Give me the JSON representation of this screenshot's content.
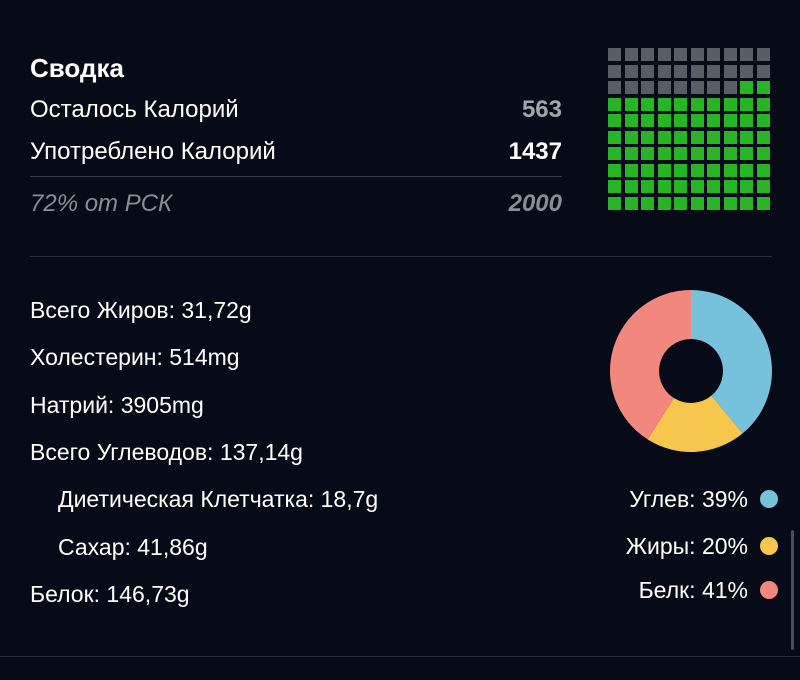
{
  "summary": {
    "title": "Сводка",
    "remaining_label": "Осталось Калорий",
    "remaining_value": "563",
    "consumed_label": "Употреблено Калорий",
    "consumed_value": "1437",
    "percent_of_target": "72% от РСК",
    "target_value": "2000",
    "waffle_fraction_consumed": 0.72
  },
  "nutrients": [
    {
      "label": "Всего Жиров: 31,72g",
      "indent": false
    },
    {
      "label": "Холестерин: 514mg",
      "indent": false
    },
    {
      "label": "Натрий: 3905mg",
      "indent": false
    },
    {
      "label": "Всего Углеводов: 137,14g",
      "indent": false
    },
    {
      "label": "Диетическая Клетчатка: 18,7g",
      "indent": true
    },
    {
      "label": "Сахар: 41,86g",
      "indent": true
    },
    {
      "label": "Белок: 146,73g",
      "indent": false
    }
  ],
  "macros_chart": {
    "type": "pie",
    "slices": [
      {
        "label": "Углев: 39%",
        "value": 39,
        "color": "#76c1db"
      },
      {
        "label": "Жиры: 20%",
        "value": 20,
        "color": "#f7c64c"
      },
      {
        "label": "Белк: 41%",
        "value": 41,
        "color": "#f2877e"
      }
    ]
  },
  "colors": {
    "background": "#070b17",
    "waffle_consumed": "#27b527",
    "waffle_remaining": "#5a5d66"
  }
}
